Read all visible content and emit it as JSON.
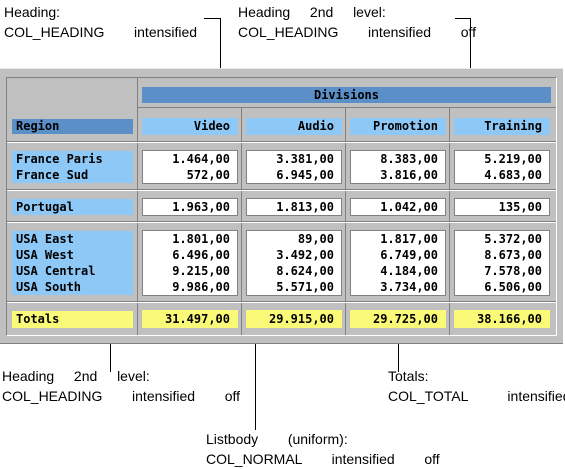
{
  "notes": {
    "top_left": [
      "Heading:",
      "COL_HEADING   intensified"
    ],
    "top_right": [
      "Heading  2nd  level:",
      "COL_HEADING   intensified   off"
    ],
    "bottom_left": [
      "Heading  2nd  level:",
      "COL_HEADING   intensified   off"
    ],
    "bottom_right": [
      "Totals:",
      "COL_TOTAL    intensified"
    ],
    "bottom_mid": [
      "Listbody   (uniform):",
      "COL_NORMAL   intensified   off"
    ]
  },
  "table": {
    "divisions_heading": "Divisions",
    "region_label": "Region",
    "columns": [
      "Video",
      "Audio",
      "Promotion",
      "Training"
    ],
    "groups": [
      {
        "rows": [
          {
            "region": "France Paris",
            "values": [
              "1.464,00",
              "3.381,00",
              "8.383,00",
              "5.219,00"
            ]
          },
          {
            "region": "France Sud",
            "values": [
              "572,00",
              "6.945,00",
              "3.816,00",
              "4.683,00"
            ]
          }
        ]
      },
      {
        "rows": [
          {
            "region": "Portugal",
            "values": [
              "1.963,00",
              "1.813,00",
              "1.042,00",
              "135,00"
            ]
          }
        ]
      },
      {
        "rows": [
          {
            "region": "USA East",
            "values": [
              "1.801,00",
              "89,00",
              "1.817,00",
              "5.372,00"
            ]
          },
          {
            "region": "USA West",
            "values": [
              "6.496,00",
              "3.492,00",
              "6.749,00",
              "8.673,00"
            ]
          },
          {
            "region": "USA Central",
            "values": [
              "9.215,00",
              "8.624,00",
              "4.184,00",
              "7.578,00"
            ]
          },
          {
            "region": "USA South",
            "values": [
              "9.986,00",
              "5.571,00",
              "3.734,00",
              "6.506,00"
            ]
          }
        ]
      }
    ],
    "totals_label": "Totals",
    "totals": [
      "31.497,00",
      "29.915,00",
      "29.725,00",
      "38.166,00"
    ]
  },
  "colors": {
    "heading": "#5b8fc8",
    "heading_2nd": "#8ec8f6",
    "totals": "#fafa78",
    "panel": "#c0c0c0"
  }
}
